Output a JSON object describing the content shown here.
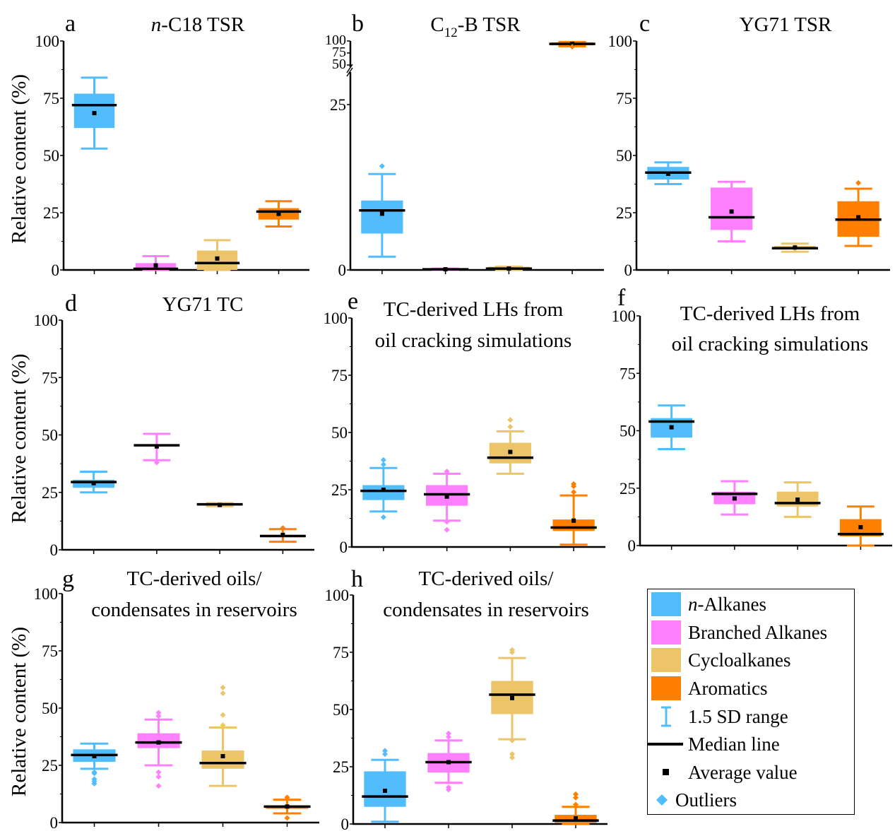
{
  "figure": {
    "ylabel": "Relative content (%)",
    "categories": [
      "n-Alkanes",
      "Branched Alkanes",
      "Cycloalkanes",
      "Aromatics"
    ],
    "colors": {
      "n-Alkanes": "#52BDFC",
      "Branched Alkanes": "#FF80FF",
      "Cycloalkanes": "#ECC56B",
      "Aromatics": "#FF8000",
      "median": "#000000",
      "mean": "#000000"
    }
  },
  "legend": {
    "items": [
      {
        "label_prefix": "n",
        "label": "-Alkanes",
        "kind": "swatch",
        "color": "#52BDFC"
      },
      {
        "label_prefix": "",
        "label": "Branched Alkanes",
        "kind": "swatch",
        "color": "#FF80FF"
      },
      {
        "label_prefix": "",
        "label": "Cycloalkanes",
        "kind": "swatch",
        "color": "#ECC56B"
      },
      {
        "label_prefix": "",
        "label": "Aromatics",
        "kind": "swatch",
        "color": "#FF8000"
      },
      {
        "label_prefix": "",
        "label": "1.5 SD range",
        "kind": "whisker",
        "color": "#52BDFC"
      },
      {
        "label_prefix": "",
        "label": "Median line",
        "kind": "median",
        "color": "#000000"
      },
      {
        "label_prefix": "",
        "label": "Average value",
        "kind": "mean",
        "color": "#000000"
      },
      {
        "label_prefix": "",
        "label": "Outliers",
        "kind": "outlier",
        "color": "#52BDFC"
      }
    ]
  },
  "chart_data": [
    {
      "type": "box",
      "panel": "a",
      "title_italic": "n",
      "title": "-C18 TSR",
      "ylabel": "Relative content (%)",
      "ylim": [
        0,
        100
      ],
      "yticks": [
        0,
        25,
        50,
        75,
        100
      ],
      "categories": [
        "n-Alkanes",
        "Branched Alkanes",
        "Cycloalkanes",
        "Aromatics"
      ],
      "boxes": [
        {
          "q1": 62,
          "median": 72,
          "q3": 77,
          "mean": 68.5,
          "whisker_low": 53,
          "whisker_high": 84,
          "outliers": []
        },
        {
          "q1": 0,
          "median": 0.5,
          "q3": 3,
          "mean": 2,
          "whisker_low": 0,
          "whisker_high": 6,
          "outliers": []
        },
        {
          "q1": 0,
          "median": 3,
          "q3": 8.5,
          "mean": 5,
          "whisker_low": 0,
          "whisker_high": 13,
          "outliers": []
        },
        {
          "q1": 22,
          "median": 25.5,
          "q3": 27,
          "mean": 24.5,
          "whisker_low": 19,
          "whisker_high": 30,
          "outliers": []
        }
      ]
    },
    {
      "type": "box",
      "panel": "b",
      "title": "C12-B TSR",
      "title_base": "C",
      "title_sub": "12",
      "title_rest": "-B TSR",
      "ylabel": "",
      "ylim": [
        0,
        100
      ],
      "axis_break": {
        "lower": [
          0,
          30
        ],
        "upper": [
          50,
          100
        ]
      },
      "yticks": [
        0,
        25,
        50,
        75,
        100
      ],
      "categories": [
        "n-Alkanes",
        "Branched Alkanes",
        "Cycloalkanes",
        "Aromatics"
      ],
      "boxes": [
        {
          "q1": 5.5,
          "median": 9,
          "q3": 10.5,
          "mean": 8.5,
          "whisker_low": 2,
          "whisker_high": 14.5,
          "outliers": [
            15.7
          ]
        },
        {
          "q1": 0,
          "median": 0.1,
          "q3": 0.2,
          "mean": 0.1,
          "whisker_low": 0,
          "whisker_high": 0.2,
          "outliers": []
        },
        {
          "q1": 0,
          "median": 0.2,
          "q3": 0.5,
          "mean": 0.2,
          "whisker_low": 0,
          "whisker_high": 0.5,
          "outliers": []
        },
        {
          "q1": 91,
          "median": 94,
          "q3": 97,
          "mean": 94,
          "whisker_low": 89,
          "whisker_high": 98,
          "outliers": [
            88
          ]
        }
      ]
    },
    {
      "type": "box",
      "panel": "c",
      "title": "YG71 TSR",
      "ylabel": "",
      "ylim": [
        0,
        100
      ],
      "yticks": [
        0,
        25,
        50,
        75,
        100
      ],
      "categories": [
        "n-Alkanes",
        "Branched Alkanes",
        "Cycloalkanes",
        "Aromatics"
      ],
      "boxes": [
        {
          "q1": 39.5,
          "median": 42.5,
          "q3": 45,
          "mean": 42,
          "whisker_low": 37.5,
          "whisker_high": 47,
          "outliers": []
        },
        {
          "q1": 17.5,
          "median": 23,
          "q3": 36,
          "mean": 25.5,
          "whisker_low": 12.5,
          "whisker_high": 38.5,
          "outliers": []
        },
        {
          "q1": 9,
          "median": 9.5,
          "q3": 10.5,
          "mean": 9.8,
          "whisker_low": 8,
          "whisker_high": 11.5,
          "outliers": []
        },
        {
          "q1": 14.5,
          "median": 22,
          "q3": 30,
          "mean": 23,
          "whisker_low": 10.5,
          "whisker_high": 35.5,
          "outliers": [
            38
          ]
        }
      ]
    },
    {
      "type": "box",
      "panel": "d",
      "title": "YG71 TC",
      "ylabel": "Relative content (%)",
      "ylim": [
        0,
        100
      ],
      "yticks": [
        0,
        25,
        50,
        75,
        100
      ],
      "categories": [
        "n-Alkanes",
        "Branched Alkanes",
        "Cycloalkanes",
        "Aromatics"
      ],
      "boxes": [
        {
          "q1": 27,
          "median": 29.5,
          "q3": 30.5,
          "mean": 29,
          "whisker_low": 25,
          "whisker_high": 34,
          "outliers": []
        },
        {
          "q1": 45,
          "median": 45.5,
          "q3": 46,
          "mean": 45,
          "whisker_low": 39,
          "whisker_high": 50.5,
          "outliers": [
            38
          ]
        },
        {
          "q1": 19.2,
          "median": 19.8,
          "q3": 20.2,
          "mean": 19.5,
          "whisker_low": 19,
          "whisker_high": 20.3,
          "outliers": []
        },
        {
          "q1": 5.5,
          "median": 6,
          "q3": 6.5,
          "mean": 6.5,
          "whisker_low": 3.5,
          "whisker_high": 9,
          "outliers": [
            9.5
          ]
        }
      ]
    },
    {
      "type": "box",
      "panel": "e",
      "title_line1": "TC-derived LHs from",
      "title_line2": "oil cracking simulations",
      "ylabel": "",
      "ylim": [
        0,
        100
      ],
      "yticks": [
        0,
        25,
        50,
        75,
        100
      ],
      "categories": [
        "n-Alkanes",
        "Branched Alkanes",
        "Cycloalkanes",
        "Aromatics"
      ],
      "boxes": [
        {
          "q1": 20.5,
          "median": 24.5,
          "q3": 27,
          "mean": 25,
          "whisker_low": 15.5,
          "whisker_high": 34.5,
          "outliers": [
            36,
            38,
            13
          ]
        },
        {
          "q1": 18,
          "median": 23,
          "q3": 27,
          "mean": 22,
          "whisker_low": 11.5,
          "whisker_high": 32,
          "outliers": [
            33,
            11,
            7.5
          ]
        },
        {
          "q1": 36.5,
          "median": 39,
          "q3": 45.5,
          "mean": 41.5,
          "whisker_low": 32,
          "whisker_high": 50.5,
          "outliers": [
            52.5,
            55.5
          ]
        },
        {
          "q1": 7,
          "median": 8.5,
          "q3": 12,
          "mean": 11.5,
          "whisker_low": 1,
          "whisker_high": 22.5,
          "outliers": [
            24,
            26.5,
            27.5
          ]
        }
      ]
    },
    {
      "type": "box",
      "panel": "f",
      "title_line1": "TC-derived LHs from",
      "title_line2": "oil cracking simulations",
      "ylabel": "",
      "ylim": [
        0,
        100
      ],
      "yticks": [
        0,
        25,
        50,
        75,
        100
      ],
      "categories": [
        "n-Alkanes",
        "Branched Alkanes",
        "Cycloalkanes",
        "Aromatics"
      ],
      "boxes": [
        {
          "q1": 47,
          "median": 54,
          "q3": 55.5,
          "mean": 51.5,
          "whisker_low": 42,
          "whisker_high": 61,
          "outliers": []
        },
        {
          "q1": 18,
          "median": 22.5,
          "q3": 23.5,
          "mean": 20.5,
          "whisker_low": 13.5,
          "whisker_high": 28,
          "outliers": []
        },
        {
          "q1": 17,
          "median": 18.5,
          "q3": 23.5,
          "mean": 20,
          "whisker_low": 12.5,
          "whisker_high": 27.5,
          "outliers": []
        },
        {
          "q1": 4,
          "median": 5,
          "q3": 11.5,
          "mean": 8,
          "whisker_low": 0,
          "whisker_high": 17,
          "outliers": []
        }
      ]
    },
    {
      "type": "box",
      "panel": "g",
      "title_line1": "TC-derived oils/",
      "title_line2": "condensates in reservoirs",
      "ylabel": "Relative content (%)",
      "ylim": [
        0,
        100
      ],
      "yticks": [
        0,
        25,
        50,
        75,
        100
      ],
      "categories": [
        "n-Alkanes",
        "Branched Alkanes",
        "Cycloalkanes",
        "Aromatics"
      ],
      "boxes": [
        {
          "q1": 26.5,
          "median": 29.5,
          "q3": 32,
          "mean": 29,
          "whisker_low": 23.5,
          "whisker_high": 34.5,
          "outliers": [
            22,
            21.5,
            19,
            18,
            17
          ]
        },
        {
          "q1": 32.5,
          "median": 35,
          "q3": 39,
          "mean": 35,
          "whisker_low": 25,
          "whisker_high": 45,
          "outliers": [
            46.5,
            48,
            22,
            20,
            16
          ]
        },
        {
          "q1": 23.5,
          "median": 26,
          "q3": 31.5,
          "mean": 29,
          "whisker_low": 16,
          "whisker_high": 41.5,
          "outliers": [
            42.5,
            47,
            56.5,
            59
          ]
        },
        {
          "q1": 6,
          "median": 7,
          "q3": 7.5,
          "mean": 7,
          "whisker_low": 4,
          "whisker_high": 10,
          "outliers": [
            11,
            2
          ]
        }
      ]
    },
    {
      "type": "box",
      "panel": "h",
      "title_line1": "TC-derived oils/",
      "title_line2": "condensates in reservoirs",
      "ylabel": "",
      "ylim": [
        0,
        100
      ],
      "yticks": [
        0,
        25,
        50,
        75,
        100
      ],
      "categories": [
        "n-Alkanes",
        "Branched Alkanes",
        "Cycloalkanes",
        "Aromatics"
      ],
      "boxes": [
        {
          "q1": 7.5,
          "median": 12,
          "q3": 23,
          "mean": 14.5,
          "whisker_low": 1,
          "whisker_high": 28,
          "outliers": [
            30.5,
            32
          ]
        },
        {
          "q1": 22.5,
          "median": 27,
          "q3": 31,
          "mean": 27,
          "whisker_low": 18,
          "whisker_high": 36.5,
          "outliers": [
            38,
            39.5,
            16,
            15
          ]
        },
        {
          "q1": 48,
          "median": 56.5,
          "q3": 62.5,
          "mean": 55,
          "whisker_low": 37,
          "whisker_high": 72.5,
          "outliers": [
            75,
            76,
            36.5,
            30.5,
            29
          ]
        },
        {
          "q1": 0.5,
          "median": 1.5,
          "q3": 4,
          "mean": 2.5,
          "whisker_low": 0,
          "whisker_high": 7.5,
          "outliers": [
            8.5,
            11.5,
            13
          ]
        }
      ]
    }
  ]
}
